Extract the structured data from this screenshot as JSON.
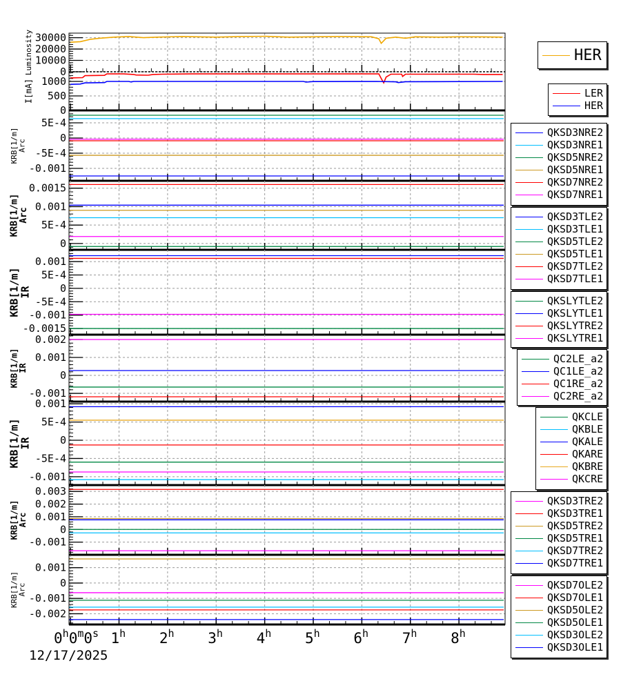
{
  "x_axis": {
    "start_label": {
      "h": "0",
      "h_unit": "h",
      "m": "0",
      "m_unit": "m",
      "s": "0",
      "s_unit": "s"
    },
    "hour_labels": [
      {
        "v": 1,
        "label": "1"
      },
      {
        "v": 2,
        "label": "2"
      },
      {
        "v": 3,
        "label": "3"
      },
      {
        "v": 4,
        "label": "4"
      },
      {
        "v": 5,
        "label": "5"
      },
      {
        "v": 6,
        "label": "6"
      },
      {
        "v": 7,
        "label": "7"
      },
      {
        "v": 8,
        "label": "8"
      }
    ],
    "hour_unit": "h",
    "date": "12/17/2025",
    "xlim": [
      -0.03,
      8.95
    ]
  },
  "chart_data": [
    {
      "type": "line",
      "ylabel": [
        "Luminosity"
      ],
      "ylim": [
        0,
        34000
      ],
      "yticks": [
        {
          "v": 0,
          "label": "0"
        },
        {
          "v": 10000,
          "label": "10000"
        },
        {
          "v": 20000,
          "label": "20000"
        },
        {
          "v": 30000,
          "label": "30000"
        }
      ],
      "legend": "top-right",
      "series": [
        {
          "name": "HER",
          "color": "#f0a800",
          "points": [
            [
              0,
              26000
            ],
            [
              0.2,
              26500
            ],
            [
              0.4,
              28500
            ],
            [
              0.6,
              29500
            ],
            [
              0.9,
              30500
            ],
            [
              1.2,
              31000
            ],
            [
              1.5,
              30000
            ],
            [
              1.8,
              30500
            ],
            [
              2.3,
              31000
            ],
            [
              3,
              30500
            ],
            [
              3.5,
              31000
            ],
            [
              4,
              31200
            ],
            [
              4.5,
              30500
            ],
            [
              5,
              30800
            ],
            [
              5.5,
              31000
            ],
            [
              6.2,
              30800
            ],
            [
              6.35,
              29000
            ],
            [
              6.4,
              25000
            ],
            [
              6.5,
              29500
            ],
            [
              6.7,
              30500
            ],
            [
              6.9,
              29500
            ],
            [
              7.1,
              30800
            ],
            [
              7.6,
              30500
            ],
            [
              8,
              30800
            ],
            [
              8.5,
              30700
            ],
            [
              8.9,
              30500
            ]
          ]
        }
      ]
    },
    {
      "type": "line",
      "ylabel": [
        "I[mA]"
      ],
      "ylim": [
        0,
        1333
      ],
      "yticks": [
        {
          "v": 0,
          "label": "0"
        },
        {
          "v": 500,
          "label": "500"
        },
        {
          "v": 1000,
          "label": "1000"
        }
      ],
      "legend": "top-right",
      "series": [
        {
          "name": "LER",
          "color": "#ff0000",
          "points": [
            [
              0,
              1120
            ],
            [
              0.25,
              1130
            ],
            [
              0.3,
              1200
            ],
            [
              0.7,
              1210
            ],
            [
              0.75,
              1260
            ],
            [
              1.1,
              1260
            ],
            [
              1.3,
              1240
            ],
            [
              1.35,
              1220
            ],
            [
              1.6,
              1215
            ],
            [
              1.7,
              1240
            ],
            [
              1.9,
              1250
            ],
            [
              2.5,
              1260
            ],
            [
              6.35,
              1260
            ],
            [
              6.4,
              1100
            ],
            [
              6.45,
              950
            ],
            [
              6.5,
              1150
            ],
            [
              6.6,
              1250
            ],
            [
              6.82,
              1250
            ],
            [
              6.84,
              1170
            ],
            [
              6.9,
              1250
            ],
            [
              8.3,
              1250
            ],
            [
              8.5,
              1240
            ],
            [
              8.9,
              1240
            ]
          ]
        },
        {
          "name": "HER",
          "color": "#0000ff",
          "points": [
            [
              0,
              900
            ],
            [
              0.2,
              910
            ],
            [
              0.3,
              950
            ],
            [
              0.7,
              960
            ],
            [
              0.75,
              1000
            ],
            [
              1.2,
              1000
            ],
            [
              1.25,
              980
            ],
            [
              1.3,
              1000
            ],
            [
              4.8,
              1000
            ],
            [
              4.85,
              975
            ],
            [
              5,
              995
            ],
            [
              6.3,
              1000
            ],
            [
              6.7,
              985
            ],
            [
              6.75,
              960
            ],
            [
              6.9,
              990
            ],
            [
              8.9,
              1000
            ]
          ]
        }
      ]
    },
    {
      "type": "line",
      "ylabel": [
        "KRB[1/m]",
        "Arc"
      ],
      "ylim": [
        -0.00141,
        0.00091
      ],
      "yticks": [
        {
          "v": -0.001,
          "label": "-0.001"
        },
        {
          "v": -0.0005,
          "label": "-5E-4"
        },
        {
          "v": 0,
          "label": "0"
        },
        {
          "v": 0.0005,
          "label": "5E-4"
        }
      ],
      "series": [
        {
          "name": "QKSD3NRE2",
          "color": "#0000ff",
          "y": -0.00125
        },
        {
          "name": "QKSD3NRE1",
          "color": "#00bfff",
          "y": 0.00064
        },
        {
          "name": "QKSD5NRE2",
          "color": "#008844",
          "y": 0.00075
        },
        {
          "name": "QKSD5NRE1",
          "color": "#cc9922",
          "y": -0.00057
        },
        {
          "name": "QKSD7NRE2",
          "color": "#ff0000",
          "y": -9e-05
        },
        {
          "name": "QKSD7NRE1",
          "color": "#ff00ff",
          "y": -4e-05
        }
      ]
    },
    {
      "type": "line",
      "ylabel": [
        "KRB[1/m]",
        "Arc"
      ],
      "ylim": [
        -0.00017,
        0.0017
      ],
      "yticks": [
        {
          "v": 0,
          "label": "0"
        },
        {
          "v": 0.0005,
          "label": "5E-4"
        },
        {
          "v": 0.001,
          "label": "0.001"
        },
        {
          "v": 0.0015,
          "label": "0.0015"
        }
      ],
      "series": [
        {
          "name": "QKSD3TLE2",
          "color": "#0000ff",
          "y": 0.00104
        },
        {
          "name": "QKSD3TLE1",
          "color": "#00bfff",
          "y": 0.0007
        },
        {
          "name": "QKSD5TLE2",
          "color": "#008844",
          "y": -8e-05
        },
        {
          "name": "QKSD5TLE1",
          "color": "#cc9922",
          "y": 0.0009
        },
        {
          "name": "QKSD7TLE2",
          "color": "#ff0000",
          "y": 0.0016
        },
        {
          "name": "QKSD7TLE1",
          "color": "#ff00ff",
          "y": 0.00019
        }
      ]
    },
    {
      "type": "line",
      "ylabel": [
        "KRB[1/m]",
        "IR"
      ],
      "ylim": [
        -0.00173,
        0.00144
      ],
      "yticks": [
        {
          "v": -0.0015,
          "label": "-0.0015"
        },
        {
          "v": -0.001,
          "label": "-0.001"
        },
        {
          "v": -0.0005,
          "label": "-5E-4"
        },
        {
          "v": 0,
          "label": "0"
        },
        {
          "v": 0.0005,
          "label": "5E-4"
        },
        {
          "v": 0.001,
          "label": "0.001"
        }
      ],
      "series": [
        {
          "name": "QKSLYTLE2",
          "color": "#008844",
          "y": -0.0015
        },
        {
          "name": "QKSLYTLE1",
          "color": "#0000ff",
          "y": 0.00122
        },
        {
          "name": "QKSLYTRE2",
          "color": "#ff0000",
          "y": 0.00112
        },
        {
          "name": "QKSLYTRE1",
          "color": "#ff00ff",
          "y": -0.00097
        }
      ]
    },
    {
      "type": "line",
      "ylabel": [
        "KRB[1/m]",
        "IR"
      ],
      "ylim": [
        -0.00146,
        0.00227
      ],
      "yticks": [
        {
          "v": -0.001,
          "label": "-0.001"
        },
        {
          "v": 0,
          "label": "0"
        },
        {
          "v": 0.001,
          "label": "0.001"
        },
        {
          "v": 0.002,
          "label": "0.002"
        }
      ],
      "series": [
        {
          "name": "QC2LE_a2",
          "color": "#008844",
          "y": -0.00065
        },
        {
          "name": "QC1LE_a2",
          "color": "#0000ff",
          "y": 0.00027
        },
        {
          "name": "QC1RE_a2",
          "color": "#ff0000",
          "y": -0.00119
        },
        {
          "name": "QC2RE_a2",
          "color": "#ff00ff",
          "y": 0.002
        }
      ]
    },
    {
      "type": "line",
      "ylabel": [
        "KRB[1/m]",
        "IR"
      ],
      "ylim": [
        -0.00123,
        0.00106
      ],
      "yticks": [
        {
          "v": -0.001,
          "label": "-0.001"
        },
        {
          "v": -0.0005,
          "label": "-5E-4"
        },
        {
          "v": 0,
          "label": "0"
        },
        {
          "v": 0.0005,
          "label": "5E-4"
        },
        {
          "v": 0.001,
          "label": "0.001"
        }
      ],
      "series": [
        {
          "name": "QKCLE",
          "color": "#008844",
          "y": -0.0006
        },
        {
          "name": "QKBLE",
          "color": "#00bfff",
          "y": -0.00108
        },
        {
          "name": "QKALE",
          "color": "#0000ff",
          "y": 0.00092
        },
        {
          "name": "QKARE",
          "color": "#ff0000",
          "y": -0.00013
        },
        {
          "name": "QKBRE",
          "color": "#e8a820",
          "y": 0.00055
        },
        {
          "name": "QKCRE",
          "color": "#ff00ff",
          "y": -0.00087
        }
      ]
    },
    {
      "type": "line",
      "ylabel": [
        "KRB[1/m]",
        "Arc"
      ],
      "ylim": [
        -0.002,
        0.0035
      ],
      "yticks": [
        {
          "v": -0.001,
          "label": "-0.001"
        },
        {
          "v": 0,
          "label": "0"
        },
        {
          "v": 0.001,
          "label": "0.001"
        },
        {
          "v": 0.002,
          "label": "0.002"
        },
        {
          "v": 0.003,
          "label": "0.003"
        }
      ],
      "series": [
        {
          "name": "QKSD3TRE2",
          "color": "#ff00ff",
          "y": -0.00168
        },
        {
          "name": "QKSD3TRE1",
          "color": "#ff0000",
          "y": 0.00316
        },
        {
          "name": "QKSD5TRE2",
          "color": "#cc9922",
          "y": 0.00086
        },
        {
          "name": "QKSD5TRE1",
          "color": "#008844",
          "y": 0.0
        },
        {
          "name": "QKSD7TRE2",
          "color": "#00bfff",
          "y": -0.00027
        },
        {
          "name": "QKSD7TRE1",
          "color": "#0000ff",
          "y": 0.00076
        }
      ]
    },
    {
      "type": "line",
      "ylabel": [
        "KRB[1/m]",
        "Arc"
      ],
      "ylim": [
        -0.0027,
        0.00184
      ],
      "yticks": [
        {
          "v": -0.002,
          "label": "-0.002"
        },
        {
          "v": -0.001,
          "label": "-0.001"
        },
        {
          "v": 0,
          "label": "0"
        },
        {
          "v": 0.001,
          "label": "0.001"
        }
      ],
      "series": [
        {
          "name": "QKSD7OLE2",
          "color": "#ff00ff",
          "y": -0.00063
        },
        {
          "name": "QKSD7OLE1",
          "color": "#ff0000",
          "y": -0.00175
        },
        {
          "name": "QKSD5OLE2",
          "color": "#cc9922",
          "y": 0.00157
        },
        {
          "name": "QKSD5OLE1",
          "color": "#008844",
          "y": -0.00112
        },
        {
          "name": "QKSD3OLE2",
          "color": "#00bfff",
          "y": -0.00157
        },
        {
          "name": "QKSD3OLE1",
          "color": "#0000ff",
          "y": -0.00238
        }
      ]
    }
  ]
}
